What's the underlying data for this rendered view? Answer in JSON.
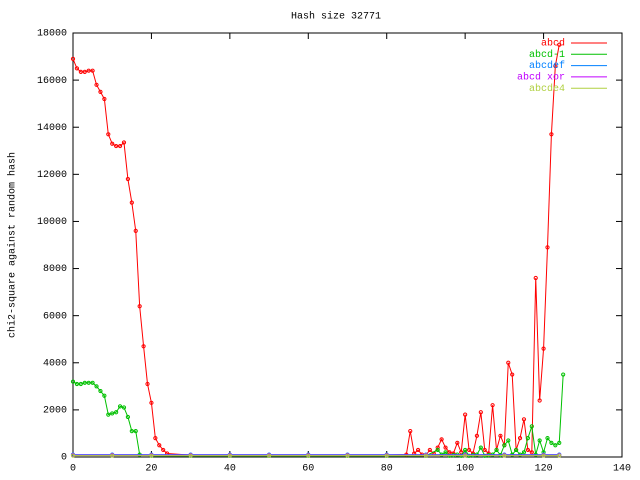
{
  "chart_data": {
    "type": "line",
    "title": "Hash size 32771",
    "y_label": "chi2-square against random hash",
    "xlim": [
      0,
      140
    ],
    "xticks": [
      0,
      20,
      40,
      60,
      80,
      100,
      120,
      140
    ],
    "ylim": [
      0,
      18000
    ],
    "yticks": [
      0,
      2000,
      4000,
      6000,
      8000,
      10000,
      12000,
      14000,
      16000,
      18000
    ],
    "legend": "top-right",
    "series": [
      {
        "name": "abcd",
        "color": "#ff0000",
        "x": [
          0,
          1,
          2,
          3,
          4,
          5,
          6,
          7,
          8,
          9,
          10,
          11,
          12,
          13,
          14,
          15,
          16,
          17,
          18,
          19,
          20,
          21,
          22,
          23,
          24,
          30,
          40,
          50,
          60,
          70,
          80,
          85,
          86,
          87,
          88,
          89,
          90,
          91,
          92,
          93,
          94,
          95,
          96,
          97,
          98,
          99,
          100,
          101,
          102,
          103,
          104,
          105,
          106,
          107,
          108,
          109,
          110,
          111,
          112,
          113,
          114,
          115,
          116,
          117,
          118,
          119,
          120,
          121,
          122,
          123,
          124
        ],
        "values": [
          16900,
          16500,
          16350,
          16350,
          16400,
          16400,
          15800,
          15500,
          15200,
          13700,
          13300,
          13200,
          13200,
          13350,
          11800,
          10800,
          9600,
          6400,
          4700,
          3100,
          2300,
          800,
          500,
          300,
          150,
          80,
          80,
          80,
          80,
          80,
          80,
          100,
          1100,
          150,
          300,
          100,
          80,
          300,
          150,
          400,
          750,
          400,
          200,
          150,
          600,
          200,
          1800,
          300,
          150,
          900,
          1900,
          300,
          150,
          2200,
          300,
          900,
          500,
          4000,
          3500,
          300,
          800,
          1600,
          300,
          200,
          7600,
          2400,
          4600,
          8900,
          13700,
          16600,
          17500
        ]
      },
      {
        "name": "abcd-1",
        "color": "#00c000",
        "x": [
          0,
          1,
          2,
          3,
          4,
          5,
          6,
          7,
          8,
          9,
          10,
          11,
          12,
          13,
          14,
          15,
          16,
          17,
          20,
          30,
          40,
          50,
          60,
          70,
          80,
          90,
          93,
          94,
          95,
          96,
          97,
          98,
          99,
          100,
          101,
          102,
          103,
          104,
          105,
          106,
          107,
          108,
          109,
          110,
          111,
          112,
          113,
          114,
          115,
          116,
          117,
          118,
          119,
          120,
          121,
          122,
          123,
          124,
          125
        ],
        "values": [
          3200,
          3100,
          3100,
          3150,
          3150,
          3150,
          3000,
          2800,
          2600,
          1800,
          1850,
          1900,
          2150,
          2100,
          1700,
          1100,
          1100,
          100,
          50,
          50,
          50,
          50,
          50,
          50,
          50,
          50,
          300,
          100,
          200,
          50,
          80,
          100,
          50,
          300,
          50,
          80,
          100,
          400,
          50,
          80,
          100,
          300,
          80,
          500,
          700,
          100,
          300,
          100,
          200,
          800,
          1300,
          100,
          700,
          200,
          800,
          600,
          500,
          600,
          3500
        ]
      },
      {
        "name": "abcdef",
        "color": "#0080ff",
        "x": [
          0,
          10,
          20,
          30,
          40,
          50,
          60,
          70,
          80,
          90,
          100,
          110,
          120,
          124
        ],
        "values": [
          100,
          100,
          100,
          100,
          100,
          100,
          100,
          100,
          100,
          100,
          100,
          100,
          100,
          100
        ]
      },
      {
        "name": "abcd xor",
        "color": "#c000ff",
        "x": [
          0,
          10,
          20,
          30,
          40,
          50,
          60,
          70,
          80,
          90,
          100,
          110,
          120,
          124
        ],
        "values": [
          80,
          80,
          80,
          80,
          80,
          80,
          80,
          80,
          80,
          80,
          80,
          80,
          80,
          80
        ]
      },
      {
        "name": "abcde4",
        "color": "#b0d040",
        "x": [
          0,
          10,
          20,
          30,
          40,
          50,
          60,
          70,
          80,
          90,
          100,
          110,
          120,
          124
        ],
        "values": [
          60,
          60,
          60,
          60,
          60,
          60,
          60,
          60,
          60,
          60,
          60,
          60,
          60,
          60
        ]
      }
    ]
  }
}
